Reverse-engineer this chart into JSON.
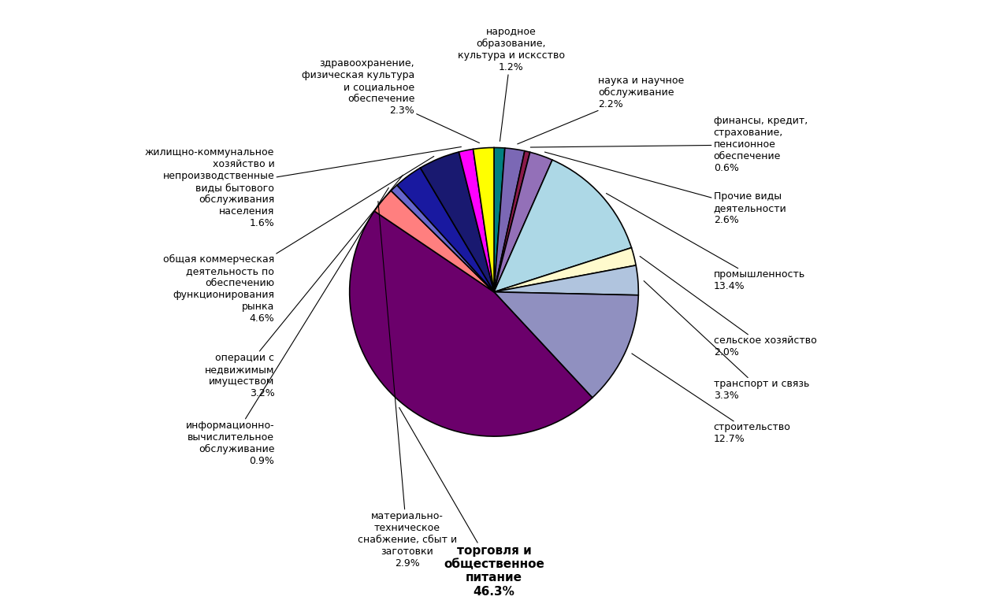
{
  "slices_ordered": [
    {
      "label": "народное\nобразование,\nкультура и исксство",
      "pct": 1.2,
      "color": "#008080"
    },
    {
      "label": "наука и научное\nобслуживание",
      "pct": 2.2,
      "color": "#7B68B5"
    },
    {
      "label": "финансы, кредит,\nстрахование,\nпенсионное\nобеспечение",
      "pct": 0.6,
      "color": "#8B1A4A"
    },
    {
      "label": "Прочие виды\nдеятельности",
      "pct": 2.6,
      "color": "#9370B8"
    },
    {
      "label": "промышленность",
      "pct": 13.4,
      "color": "#ADD8E6"
    },
    {
      "label": "сельское хозяйство",
      "pct": 2.0,
      "color": "#FFFACD"
    },
    {
      "label": "транспорт и связь",
      "pct": 3.3,
      "color": "#B0C4DE"
    },
    {
      "label": "строительство",
      "pct": 12.7,
      "color": "#9090C0"
    },
    {
      "label": "торговля и\nобщественное\nпитание",
      "pct": 46.3,
      "color": "#6B006B",
      "bold": true
    },
    {
      "label": "материально-\nтехническое\nснабжение, сбыт и\nзаготовки",
      "pct": 2.9,
      "color": "#FF7F7F"
    },
    {
      "label": "информационно-\nвычислительное\nобслуживание",
      "pct": 0.9,
      "color": "#6666CC"
    },
    {
      "label": "операции с\nнедвижимым\nимуществом",
      "pct": 3.2,
      "color": "#1919A0"
    },
    {
      "label": "общая коммерческая\nдеятельность по\nобеспечению\nфункционирования\nрынка",
      "pct": 4.6,
      "color": "#191970"
    },
    {
      "label": "жилищно-коммунальное\nхозяйство и\nнепроизводственные\nвиды бытового\nобслуживания\nнаселения",
      "pct": 1.6,
      "color": "#FF00FF"
    },
    {
      "label": "здравоохранение,\nфизическая культура\nи социальное\nобеспечение",
      "pct": 2.3,
      "color": "#FFFF00"
    }
  ],
  "background_color": "#FFFFFF",
  "label_defs": [
    [
      0,
      0.12,
      1.52,
      "center",
      "bottom"
    ],
    [
      1,
      0.72,
      1.38,
      "left",
      "center"
    ],
    [
      2,
      1.52,
      1.02,
      "left",
      "center"
    ],
    [
      3,
      1.52,
      0.58,
      "left",
      "center"
    ],
    [
      4,
      1.52,
      0.08,
      "left",
      "center"
    ],
    [
      5,
      1.52,
      -0.38,
      "left",
      "center"
    ],
    [
      6,
      1.52,
      -0.68,
      "left",
      "center"
    ],
    [
      7,
      1.52,
      -0.98,
      "left",
      "center"
    ],
    [
      8,
      0.0,
      -1.75,
      "center",
      "top"
    ],
    [
      9,
      -0.6,
      -1.52,
      "center",
      "top"
    ],
    [
      10,
      -1.52,
      -1.05,
      "right",
      "center"
    ],
    [
      11,
      -1.52,
      -0.58,
      "right",
      "center"
    ],
    [
      12,
      -1.52,
      0.02,
      "right",
      "center"
    ],
    [
      13,
      -1.52,
      0.72,
      "right",
      "center"
    ],
    [
      14,
      -0.55,
      1.42,
      "right",
      "center"
    ]
  ]
}
